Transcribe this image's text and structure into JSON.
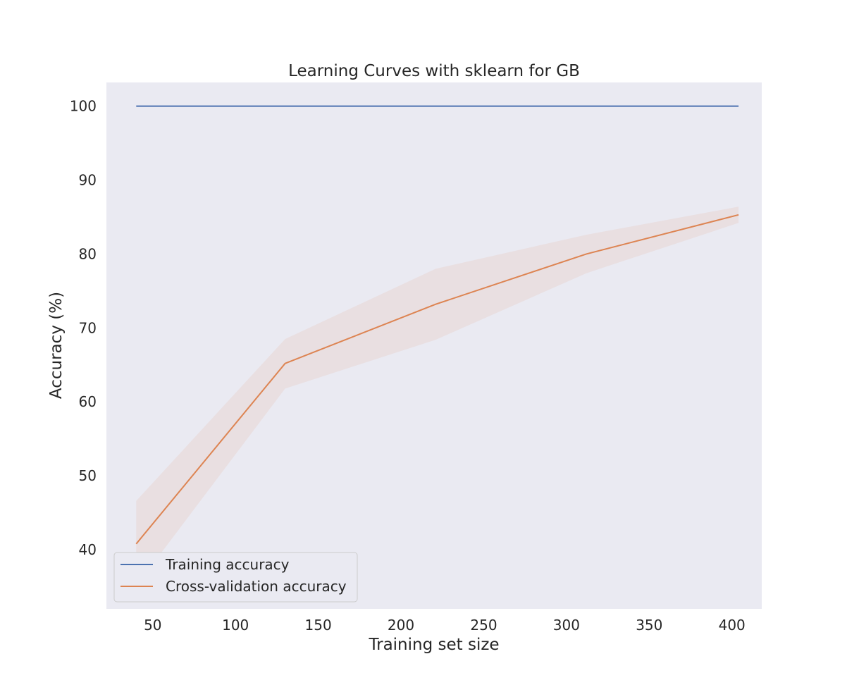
{
  "chart_data": {
    "type": "line",
    "title": "Learning Curves with sklearn for GB",
    "xlabel": "Training set size",
    "ylabel": "Accuracy (%)",
    "xlim": [
      22,
      418
    ],
    "ylim": [
      32,
      103.2
    ],
    "xticks": [
      50,
      100,
      150,
      200,
      250,
      300,
      350,
      400
    ],
    "yticks": [
      40,
      50,
      60,
      70,
      80,
      90,
      100
    ],
    "x": [
      40,
      130,
      221,
      312,
      404
    ],
    "grid": false,
    "background": "#eaeaf2",
    "legend": {
      "placement": "lower left"
    },
    "series": [
      {
        "name": "Training accuracy",
        "color": "#4c72b0",
        "values": [
          100,
          100,
          100,
          100,
          100
        ]
      },
      {
        "name": "Cross-validation accuracy",
        "color": "#dd8452",
        "values": [
          40.8,
          65.2,
          73.2,
          80.0,
          85.3
        ],
        "band_lower": [
          35.1,
          61.8,
          68.4,
          77.4,
          84.2
        ],
        "band_upper": [
          46.6,
          68.5,
          78.0,
          82.6,
          86.4
        ],
        "band_color": "#dd8452"
      }
    ]
  }
}
